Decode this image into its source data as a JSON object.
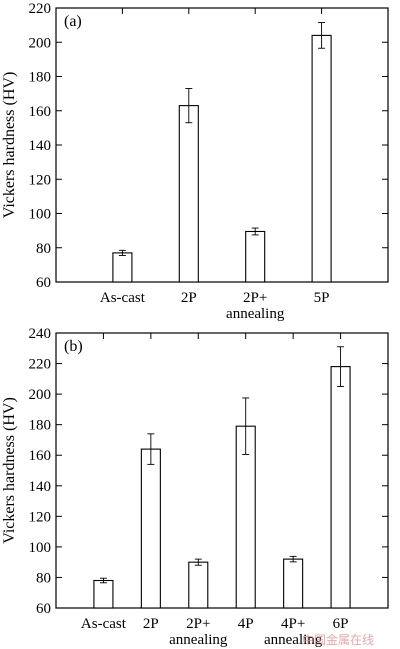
{
  "chart_data": [
    {
      "type": "bar",
      "panel_label": "(a)",
      "ylabel": "Vickers hardness (HV)",
      "ylim": [
        60,
        220
      ],
      "yticks": [
        60,
        80,
        100,
        120,
        140,
        160,
        180,
        200,
        220
      ],
      "categories": [
        "As-cast",
        "2P",
        "2P+\nannealing",
        "5P"
      ],
      "values": [
        77,
        163,
        89.5,
        204
      ],
      "errors": [
        1.5,
        10,
        2,
        7.5
      ],
      "grid": false
    },
    {
      "type": "bar",
      "panel_label": "(b)",
      "ylabel": "Vickers hardness (HV)",
      "ylim": [
        60,
        240
      ],
      "yticks": [
        60,
        80,
        100,
        120,
        140,
        160,
        180,
        200,
        220,
        240
      ],
      "categories": [
        "As-cast",
        "2P",
        "2P+\nannealing",
        "4P",
        "4P+\nannealing",
        "6P"
      ],
      "values": [
        78,
        164,
        90,
        179,
        92,
        218
      ],
      "errors": [
        1.5,
        10,
        2,
        18.5,
        1.8,
        13
      ],
      "grid": false
    }
  ],
  "watermark": "中国金属在线"
}
